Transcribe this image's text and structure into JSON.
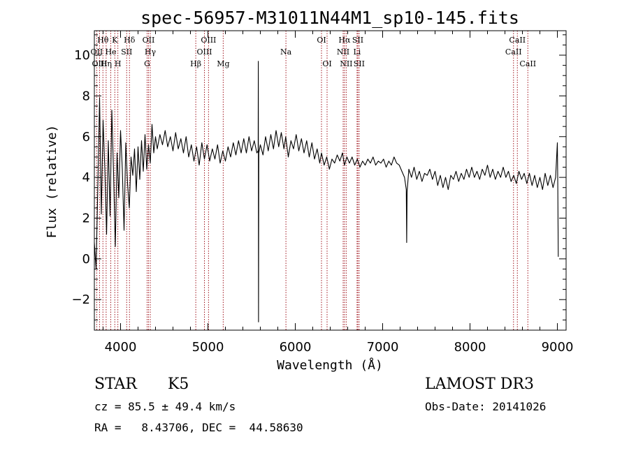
{
  "chart_data": {
    "type": "line",
    "title": "spec-56957-M31011N44M1_sp10-145.fits",
    "xlabel": "Wavelength (Å)",
    "ylabel": "Flux (relative)",
    "xlim": [
      3700,
      9100
    ],
    "ylim": [
      -3.5,
      11.2
    ],
    "x_ticks": [
      4000,
      5000,
      6000,
      7000,
      8000,
      9000
    ],
    "y_ticks": [
      -2,
      0,
      2,
      4,
      6,
      8,
      10
    ],
    "x_tick_labels": [
      "4000",
      "5000",
      "6000",
      "7000",
      "8000",
      "9000"
    ],
    "y_tick_labels": [
      "−2",
      "0",
      "2",
      "4",
      "6",
      "8",
      "10"
    ],
    "line_color": "#000000",
    "marker_color": "#a0141e",
    "series": [
      {
        "name": "spectrum",
        "points": [
          [
            3700,
            0.8
          ],
          [
            3720,
            -0.5
          ],
          [
            3740,
            3.6
          ],
          [
            3760,
            7.9
          ],
          [
            3780,
            2.2
          ],
          [
            3800,
            6.8
          ],
          [
            3820,
            4.4
          ],
          [
            3840,
            1.2
          ],
          [
            3860,
            5.8
          ],
          [
            3880,
            2.1
          ],
          [
            3900,
            7.3
          ],
          [
            3920,
            4.2
          ],
          [
            3940,
            0.6
          ],
          [
            3960,
            5.2
          ],
          [
            3980,
            3.0
          ],
          [
            4000,
            6.3
          ],
          [
            4020,
            4.4
          ],
          [
            4040,
            1.4
          ],
          [
            4060,
            5.7
          ],
          [
            4080,
            3.7
          ],
          [
            4100,
            2.5
          ],
          [
            4120,
            5.0
          ],
          [
            4140,
            4.1
          ],
          [
            4160,
            5.4
          ],
          [
            4180,
            3.3
          ],
          [
            4200,
            5.5
          ],
          [
            4220,
            3.9
          ],
          [
            4240,
            5.8
          ],
          [
            4260,
            4.3
          ],
          [
            4280,
            6.1
          ],
          [
            4300,
            4.4
          ],
          [
            4320,
            5.6
          ],
          [
            4340,
            4.7
          ],
          [
            4360,
            6.6
          ],
          [
            4380,
            5.2
          ],
          [
            4400,
            6.0
          ],
          [
            4420,
            5.4
          ],
          [
            4450,
            6.1
          ],
          [
            4480,
            5.6
          ],
          [
            4510,
            6.3
          ],
          [
            4540,
            5.5
          ],
          [
            4570,
            6.0
          ],
          [
            4600,
            5.3
          ],
          [
            4630,
            6.2
          ],
          [
            4660,
            5.4
          ],
          [
            4690,
            5.9
          ],
          [
            4720,
            5.2
          ],
          [
            4750,
            6.0
          ],
          [
            4780,
            5.0
          ],
          [
            4810,
            5.6
          ],
          [
            4840,
            4.8
          ],
          [
            4870,
            5.5
          ],
          [
            4900,
            4.6
          ],
          [
            4930,
            5.7
          ],
          [
            4960,
            4.9
          ],
          [
            4990,
            5.6
          ],
          [
            5020,
            4.8
          ],
          [
            5050,
            5.4
          ],
          [
            5080,
            4.9
          ],
          [
            5110,
            5.6
          ],
          [
            5140,
            4.7
          ],
          [
            5170,
            5.3
          ],
          [
            5200,
            4.8
          ],
          [
            5230,
            5.5
          ],
          [
            5260,
            5.0
          ],
          [
            5290,
            5.7
          ],
          [
            5320,
            5.1
          ],
          [
            5350,
            5.8
          ],
          [
            5380,
            5.2
          ],
          [
            5410,
            5.9
          ],
          [
            5440,
            5.2
          ],
          [
            5470,
            6.0
          ],
          [
            5500,
            5.3
          ],
          [
            5530,
            5.8
          ],
          [
            5560,
            5.2
          ],
          [
            5575,
            5.3
          ],
          [
            5577,
            9.7
          ],
          [
            5579,
            -3.1
          ],
          [
            5582,
            5.2
          ],
          [
            5600,
            5.6
          ],
          [
            5630,
            5.1
          ],
          [
            5660,
            6.0
          ],
          [
            5690,
            5.3
          ],
          [
            5720,
            6.1
          ],
          [
            5750,
            5.4
          ],
          [
            5780,
            6.3
          ],
          [
            5810,
            5.5
          ],
          [
            5840,
            6.2
          ],
          [
            5870,
            5.4
          ],
          [
            5890,
            6.0
          ],
          [
            5920,
            5.0
          ],
          [
            5950,
            5.8
          ],
          [
            5980,
            5.4
          ],
          [
            6010,
            6.1
          ],
          [
            6040,
            5.3
          ],
          [
            6070,
            5.9
          ],
          [
            6100,
            5.2
          ],
          [
            6130,
            5.8
          ],
          [
            6160,
            5.0
          ],
          [
            6190,
            5.7
          ],
          [
            6220,
            4.9
          ],
          [
            6250,
            5.4
          ],
          [
            6280,
            4.7
          ],
          [
            6300,
            5.2
          ],
          [
            6330,
            4.6
          ],
          [
            6360,
            5.0
          ],
          [
            6390,
            4.4
          ],
          [
            6420,
            4.9
          ],
          [
            6450,
            4.7
          ],
          [
            6480,
            5.1
          ],
          [
            6510,
            4.8
          ],
          [
            6540,
            5.2
          ],
          [
            6563,
            4.6
          ],
          [
            6590,
            5.0
          ],
          [
            6620,
            4.7
          ],
          [
            6650,
            5.0
          ],
          [
            6680,
            4.6
          ],
          [
            6710,
            4.9
          ],
          [
            6740,
            4.5
          ],
          [
            6770,
            4.8
          ],
          [
            6800,
            4.6
          ],
          [
            6830,
            4.9
          ],
          [
            6860,
            4.7
          ],
          [
            6890,
            5.0
          ],
          [
            6920,
            4.6
          ],
          [
            6950,
            4.8
          ],
          [
            6980,
            4.7
          ],
          [
            7010,
            4.9
          ],
          [
            7040,
            4.5
          ],
          [
            7070,
            4.8
          ],
          [
            7100,
            4.6
          ],
          [
            7130,
            5.0
          ],
          [
            7160,
            4.7
          ],
          [
            7190,
            4.6
          ],
          [
            7220,
            4.3
          ],
          [
            7250,
            4.0
          ],
          [
            7270,
            3.4
          ],
          [
            7275,
            0.8
          ],
          [
            7280,
            3.3
          ],
          [
            7300,
            4.4
          ],
          [
            7330,
            4.0
          ],
          [
            7360,
            4.5
          ],
          [
            7390,
            3.9
          ],
          [
            7420,
            4.3
          ],
          [
            7450,
            3.8
          ],
          [
            7480,
            4.2
          ],
          [
            7510,
            4.1
          ],
          [
            7540,
            4.4
          ],
          [
            7570,
            3.9
          ],
          [
            7600,
            4.3
          ],
          [
            7630,
            3.6
          ],
          [
            7660,
            4.1
          ],
          [
            7690,
            3.5
          ],
          [
            7720,
            4.0
          ],
          [
            7750,
            3.4
          ],
          [
            7780,
            4.1
          ],
          [
            7810,
            3.9
          ],
          [
            7840,
            4.3
          ],
          [
            7870,
            3.8
          ],
          [
            7900,
            4.2
          ],
          [
            7930,
            3.9
          ],
          [
            7960,
            4.4
          ],
          [
            7990,
            4.0
          ],
          [
            8020,
            4.5
          ],
          [
            8050,
            4.0
          ],
          [
            8080,
            4.3
          ],
          [
            8110,
            3.9
          ],
          [
            8140,
            4.4
          ],
          [
            8170,
            4.1
          ],
          [
            8200,
            4.6
          ],
          [
            8230,
            4.0
          ],
          [
            8260,
            4.4
          ],
          [
            8290,
            3.9
          ],
          [
            8320,
            4.3
          ],
          [
            8350,
            4.0
          ],
          [
            8380,
            4.5
          ],
          [
            8410,
            4.0
          ],
          [
            8440,
            4.3
          ],
          [
            8470,
            3.8
          ],
          [
            8500,
            4.1
          ],
          [
            8530,
            3.7
          ],
          [
            8560,
            4.3
          ],
          [
            8590,
            3.9
          ],
          [
            8620,
            4.2
          ],
          [
            8650,
            3.7
          ],
          [
            8680,
            4.2
          ],
          [
            8710,
            3.6
          ],
          [
            8740,
            4.1
          ],
          [
            8770,
            3.5
          ],
          [
            8800,
            4.0
          ],
          [
            8830,
            3.4
          ],
          [
            8860,
            4.2
          ],
          [
            8890,
            3.6
          ],
          [
            8920,
            4.1
          ],
          [
            8950,
            3.5
          ],
          [
            8980,
            4.0
          ],
          [
            9000,
            5.7
          ],
          [
            9005,
            3.6
          ],
          [
            9010,
            0.1
          ]
        ]
      }
    ],
    "line_markers": [
      {
        "label": "Hθ",
        "x": 3798,
        "row": 1
      },
      {
        "label": "OII",
        "x": 3727,
        "row": 2
      },
      {
        "label": "OIII",
        "x": 3760,
        "row": 3
      },
      {
        "label": "Hη",
        "x": 3835,
        "row": 3
      },
      {
        "label": "He",
        "x": 3888,
        "row": 2
      },
      {
        "label": "K",
        "x": 3934,
        "row": 1
      },
      {
        "label": "H",
        "x": 3969,
        "row": 3
      },
      {
        "label": "SII",
        "x": 4070,
        "row": 2
      },
      {
        "label": "Hδ",
        "x": 4102,
        "row": 1
      },
      {
        "label": "OII",
        "x": 4320,
        "row": 1
      },
      {
        "label": "Hγ",
        "x": 4340,
        "row": 2
      },
      {
        "label": "G",
        "x": 4304,
        "row": 3
      },
      {
        "label": "Hβ",
        "x": 4861,
        "row": 3
      },
      {
        "label": "OIII",
        "x": 4960,
        "row": 2
      },
      {
        "label": "OIII",
        "x": 5007,
        "row": 1
      },
      {
        "label": "Mg",
        "x": 5175,
        "row": 3
      },
      {
        "label": "Na",
        "x": 5893,
        "row": 2
      },
      {
        "label": "OI",
        "x": 6300,
        "row": 1
      },
      {
        "label": "OI",
        "x": 6364,
        "row": 3
      },
      {
        "label": "Hα",
        "x": 6563,
        "row": 1
      },
      {
        "label": "NII",
        "x": 6548,
        "row": 2
      },
      {
        "label": "NII",
        "x": 6583,
        "row": 3
      },
      {
        "label": "SII",
        "x": 6716,
        "row": 1
      },
      {
        "label": "Li",
        "x": 6707,
        "row": 2
      },
      {
        "label": "SII",
        "x": 6731,
        "row": 3
      },
      {
        "label": "CaII",
        "x": 8542,
        "row": 1
      },
      {
        "label": "CaII",
        "x": 8498,
        "row": 2
      },
      {
        "label": "CaII",
        "x": 8662,
        "row": 3
      }
    ]
  },
  "info": {
    "object_class": "STAR",
    "subclass": "K5",
    "survey": "LAMOST DR3",
    "redshift": "cz = 85.5 ± 49.4 km/s",
    "obs_date": "Obs-Date: 20141026",
    "coords": "RA =   8.43706, DEC =  44.58630"
  }
}
